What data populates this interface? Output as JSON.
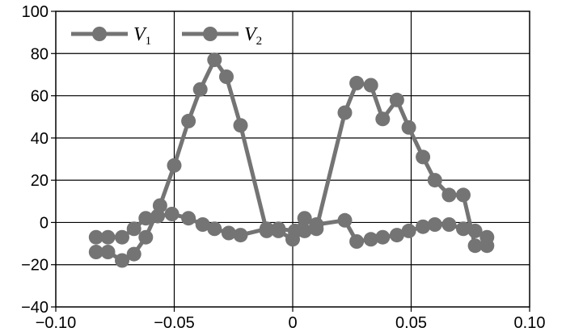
{
  "chart_data": {
    "type": "line",
    "xlim": [
      -0.1,
      0.1
    ],
    "ylim": [
      -40,
      100
    ],
    "x_ticks": [
      "−0.10",
      "−0.05",
      "0",
      "0.05",
      "0.10"
    ],
    "y_ticks": [
      "100",
      "80",
      "60",
      "40",
      "20",
      "0",
      "−20",
      "−40"
    ],
    "x_tick_values": [
      -0.1,
      -0.05,
      0,
      0.05,
      0.1
    ],
    "y_tick_values": [
      100,
      80,
      60,
      40,
      20,
      0,
      -20,
      -40
    ],
    "grid": true,
    "legend_position": "top-left",
    "series_color": "#747474",
    "series": [
      {
        "name": "V",
        "subscript": "1",
        "x": [
          -0.083,
          -0.078,
          -0.072,
          -0.067,
          -0.062,
          -0.057,
          -0.051,
          -0.044,
          -0.038,
          -0.033,
          -0.027,
          -0.022,
          -0.011,
          -0.006,
          0.001,
          0.005,
          0.01,
          0.022,
          0.027,
          0.033,
          0.038,
          0.044,
          0.049,
          0.055,
          0.06,
          0.066,
          0.072,
          0.077,
          0.082
        ],
        "y": [
          -7,
          -7,
          -7,
          -3,
          2,
          3,
          4,
          2,
          -1,
          -3,
          -5,
          -6,
          -3,
          -3,
          -4,
          2,
          -1,
          1,
          -9,
          -8,
          -7,
          -6,
          -4,
          -2,
          -1,
          -1,
          -3,
          -4,
          -7
        ]
      },
      {
        "name": "V",
        "subscript": "2",
        "x": [
          -0.083,
          -0.078,
          -0.072,
          -0.067,
          -0.062,
          -0.056,
          -0.05,
          -0.044,
          -0.039,
          -0.033,
          -0.028,
          -0.022,
          -0.011,
          -0.006,
          0.0,
          0.005,
          0.01,
          0.022,
          0.027,
          0.033,
          0.038,
          0.044,
          0.049,
          0.055,
          0.06,
          0.066,
          0.072,
          0.077,
          0.082
        ],
        "y": [
          -14,
          -14,
          -18,
          -15,
          -7,
          8,
          27,
          48,
          63,
          77,
          69,
          46,
          -4,
          -4,
          -8,
          -4,
          -3,
          52,
          66,
          65,
          49,
          58,
          45,
          31,
          20,
          13,
          13,
          -11,
          -11
        ]
      }
    ]
  }
}
